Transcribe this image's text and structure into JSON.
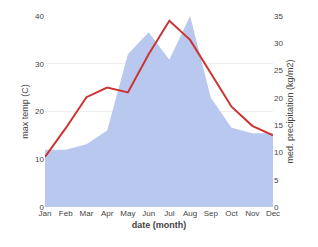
{
  "chart_data": {
    "type": "line",
    "xlabel": "date (month)",
    "ylabel": "max temp (C)",
    "y2label": "med. precipitation (kg/m2)",
    "categories": [
      "Jan",
      "Feb",
      "Mar",
      "Apr",
      "May",
      "Jun",
      "Jul",
      "Aug",
      "Sep",
      "Oct",
      "Nov",
      "Dec"
    ],
    "series": [
      {
        "type": "line",
        "color": "#cc3333",
        "values": [
          10.5,
          16.5,
          23.0,
          25.0,
          24.0,
          32.0,
          39.0,
          35.0,
          28.0,
          21.0,
          17.0,
          15.0
        ]
      },
      {
        "type": "area",
        "axis": "y2",
        "color": "#b8c8ee",
        "values": [
          10.5,
          10.5,
          11.5,
          14.0,
          28.0,
          32.0,
          27.0,
          35.0,
          20.0,
          14.5,
          13.5,
          13.5
        ]
      }
    ],
    "ylim": [
      0,
      40
    ],
    "yticks": [
      0,
      10,
      20,
      30,
      40
    ],
    "y2lim": [
      0,
      35
    ],
    "y2ticks": [
      0,
      5,
      10,
      15,
      20,
      25,
      30,
      35
    ],
    "grid": true
  }
}
